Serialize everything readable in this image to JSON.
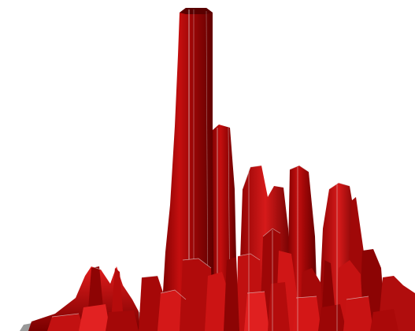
{
  "scene": {
    "background": "#ffffff",
    "palette": {
      "dark": "#6e0000",
      "mid": "#a50a0a",
      "light": "#d21414",
      "highlight": "#ff3a3a",
      "edge": "#d8d8d8",
      "floor": "#7a7a7a"
    }
  }
}
